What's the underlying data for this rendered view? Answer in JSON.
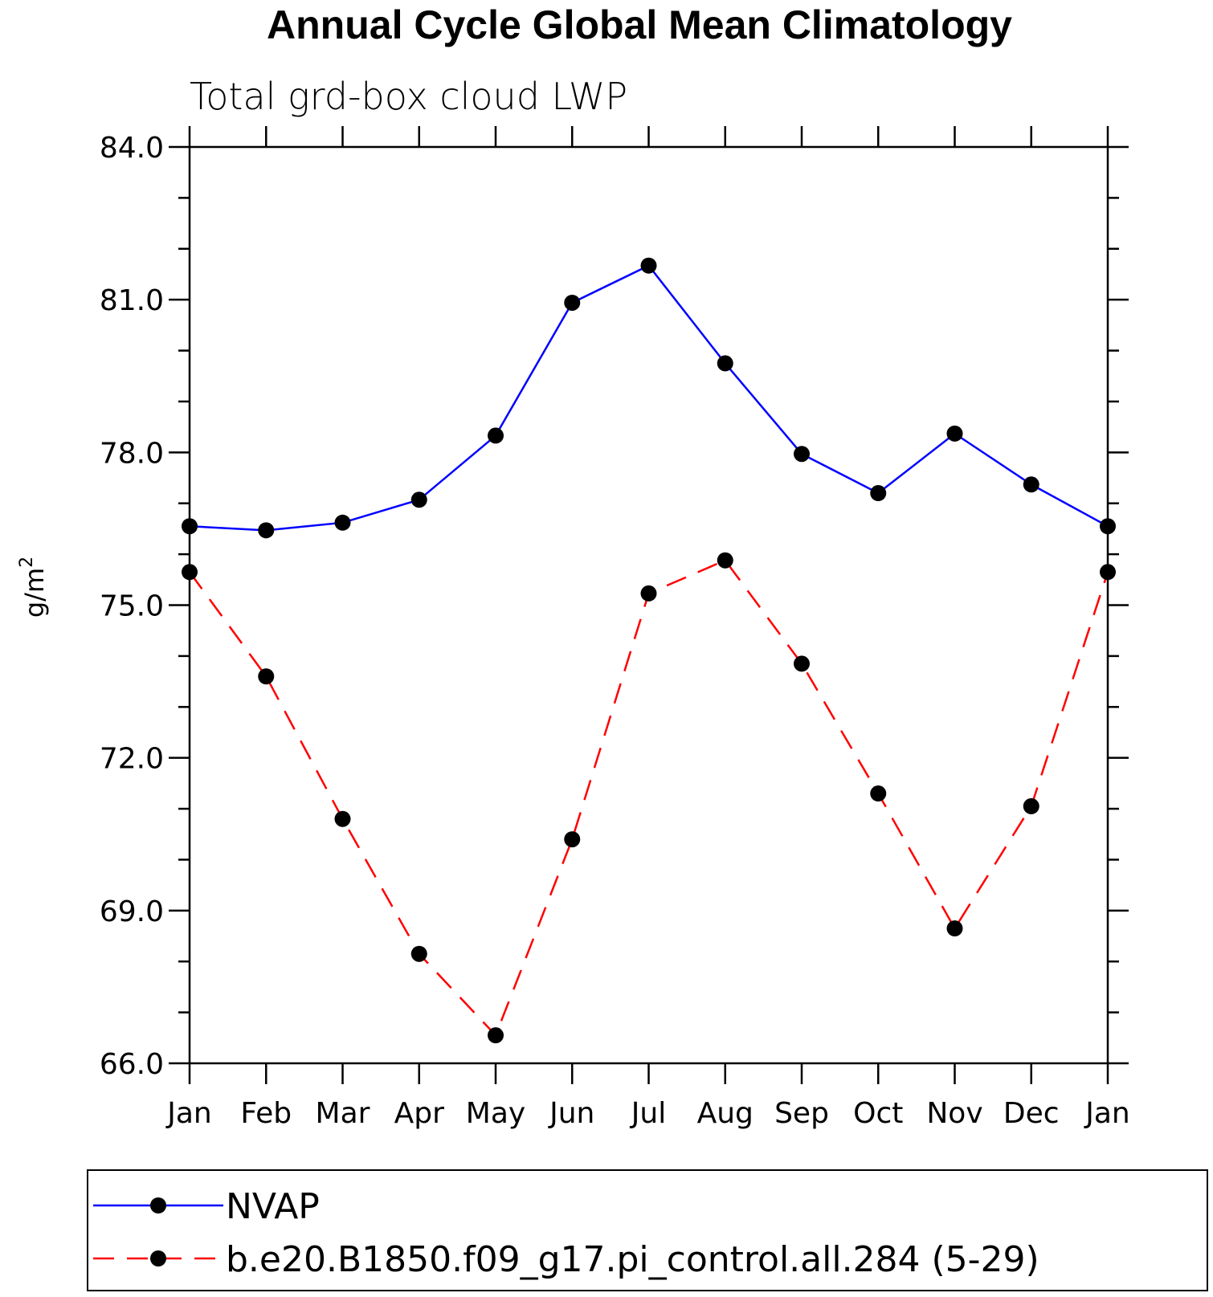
{
  "chart_data": {
    "type": "line",
    "title": "Annual Cycle Global Mean Climatology",
    "subtitle": "Total grd-box cloud LWP",
    "ylabel_base": "g/m",
    "ylabel_sup": "2",
    "xlabel": "",
    "categories": [
      "Jan",
      "Feb",
      "Mar",
      "Apr",
      "May",
      "Jun",
      "Jul",
      "Aug",
      "Sep",
      "Oct",
      "Nov",
      "Dec",
      "Jan"
    ],
    "ylim": [
      66.0,
      84.0
    ],
    "yticks": [
      "66.0",
      "69.0",
      "72.0",
      "75.0",
      "78.0",
      "81.0",
      "84.0"
    ],
    "grid": false,
    "legend_position": "bottom",
    "series": [
      {
        "name": "NVAP",
        "color": "#0000ff",
        "dash": "solid",
        "values": [
          76.55,
          76.47,
          76.62,
          77.07,
          78.33,
          80.94,
          81.67,
          79.75,
          77.97,
          77.2,
          78.37,
          77.37,
          76.55
        ]
      },
      {
        "name": "b.e20.B1850.f09_g17.pi_control.all.284 (5-29)",
        "color": "#ff0000",
        "dash": "dashed",
        "values": [
          75.65,
          73.6,
          70.8,
          68.15,
          66.55,
          70.4,
          75.23,
          75.88,
          73.85,
          71.3,
          68.65,
          71.05,
          75.65
        ]
      }
    ]
  }
}
